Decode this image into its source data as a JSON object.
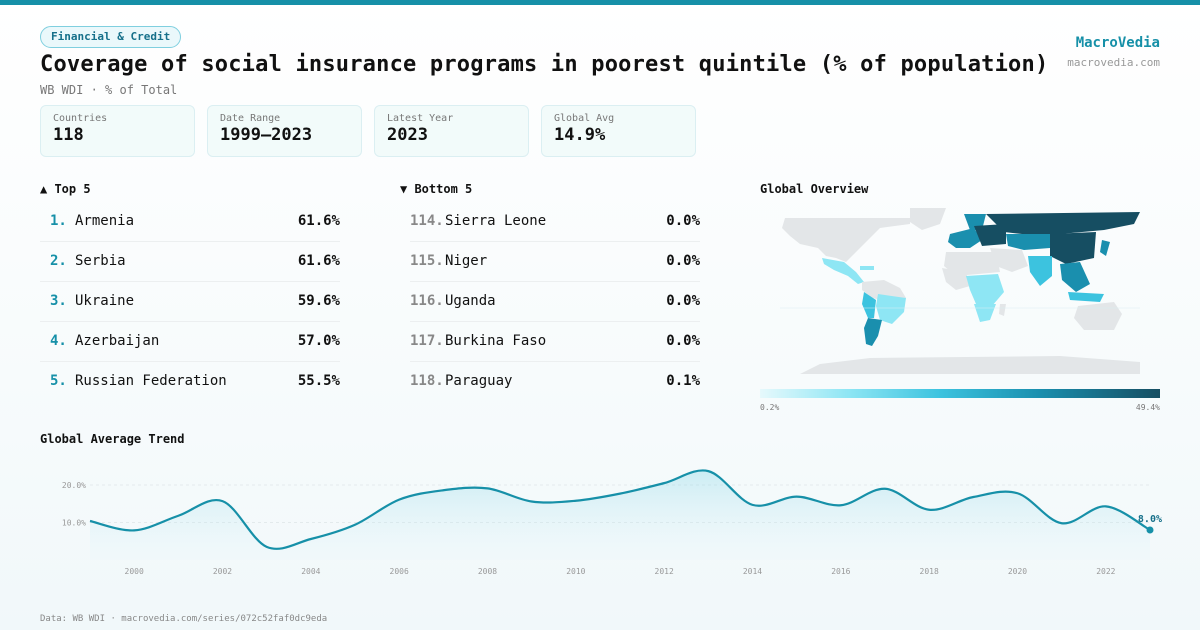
{
  "header": {
    "category": "Financial & Credit",
    "title": "Coverage of social insurance programs in poorest quintile (% of population)",
    "subtitle": "WB WDI · % of Total",
    "brand": "MacroVedia",
    "brand_url": "macrovedia.com"
  },
  "stats": [
    {
      "label": "Countries",
      "value": "118"
    },
    {
      "label": "Date Range",
      "value": "1999–2023"
    },
    {
      "label": "Latest Year",
      "value": "2023"
    },
    {
      "label": "Global Avg",
      "value": "14.9%"
    }
  ],
  "top5": {
    "title": "▲ Top 5",
    "items": [
      {
        "rank": "1.",
        "name": "Armenia",
        "value": "61.6%"
      },
      {
        "rank": "2.",
        "name": "Serbia",
        "value": "61.6%"
      },
      {
        "rank": "3.",
        "name": "Ukraine",
        "value": "59.6%"
      },
      {
        "rank": "4.",
        "name": "Azerbaijan",
        "value": "57.0%"
      },
      {
        "rank": "5.",
        "name": "Russian Federation",
        "value": "55.5%"
      }
    ]
  },
  "bottom5": {
    "title": "▼ Bottom 5",
    "items": [
      {
        "rank": "114.",
        "name": "Sierra Leone",
        "value": "0.0%"
      },
      {
        "rank": "115.",
        "name": "Niger",
        "value": "0.0%"
      },
      {
        "rank": "116.",
        "name": "Uganda",
        "value": "0.0%"
      },
      {
        "rank": "117.",
        "name": "Burkina Faso",
        "value": "0.0%"
      },
      {
        "rank": "118.",
        "name": "Paraguay",
        "value": "0.1%"
      }
    ]
  },
  "map": {
    "title": "Global Overview",
    "legend_min": "0.2%",
    "legend_max": "49.4%",
    "colors": {
      "land": "#e3e6e8",
      "low": "#8ee6f4",
      "mid": "#3cc3df",
      "high": "#1a8fae",
      "top": "#164e62"
    }
  },
  "trend": {
    "title": "Global Average Trend",
    "last_label": "8.0%",
    "line_color": "#1690a8"
  },
  "chart_data": {
    "type": "area",
    "title": "Global Average Trend",
    "x": [
      1999,
      2000,
      2001,
      2002,
      2003,
      2004,
      2005,
      2006,
      2007,
      2008,
      2009,
      2010,
      2011,
      2012,
      2013,
      2014,
      2015,
      2016,
      2017,
      2018,
      2019,
      2020,
      2021,
      2022,
      2023
    ],
    "values": [
      10.4,
      7.9,
      11.8,
      15.7,
      3.5,
      5.6,
      9.4,
      16.1,
      18.6,
      19.1,
      15.6,
      15.8,
      17.7,
      20.5,
      23.7,
      14.7,
      16.9,
      14.6,
      19.0,
      13.4,
      16.8,
      17.8,
      9.8,
      14.3,
      8.0
    ],
    "x_ticks": [
      "2000",
      "2002",
      "2004",
      "2006",
      "2008",
      "2010",
      "2012",
      "2014",
      "2016",
      "2018",
      "2020",
      "2022"
    ],
    "y_ticks": [
      "10.0%",
      "20.0%"
    ],
    "ylim": [
      0,
      28
    ],
    "grid": true
  },
  "footer": {
    "source": "Data: WB WDI · macrovedia.com/series/072c52faf0dc9eda"
  }
}
